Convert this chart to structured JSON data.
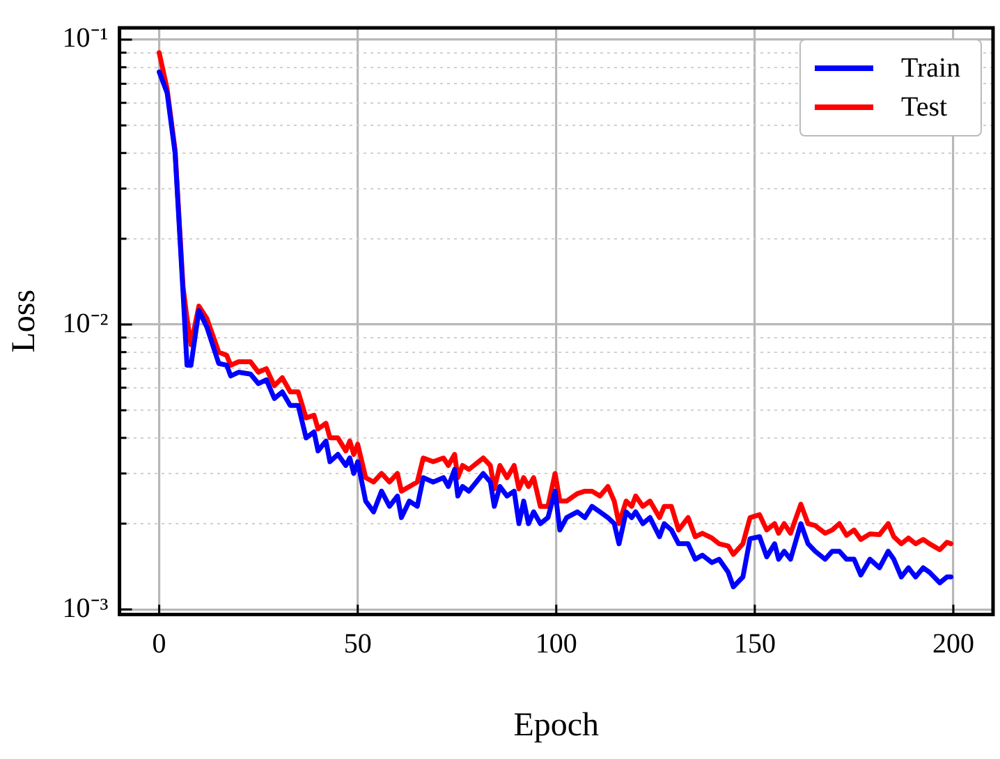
{
  "chart_data": {
    "type": "line",
    "xlabel": "Epoch",
    "ylabel": "Loss",
    "x": [
      0,
      2,
      4,
      6,
      7,
      8,
      10,
      12,
      15,
      17,
      18,
      20,
      23,
      25,
      27,
      29,
      31,
      33,
      35,
      37,
      39,
      40,
      42,
      43,
      45,
      47,
      48,
      49,
      50,
      52,
      54,
      56,
      58,
      60,
      61,
      63,
      65,
      66.5,
      69,
      71.6,
      72.8,
      74.4,
      75.2,
      76.4,
      78,
      81.6,
      83.4,
      84.4,
      85.8,
      87.6,
      89.4,
      90.6,
      91.8,
      93,
      94.3,
      96,
      97.9,
      99.7,
      100.9,
      102.6,
      105.3,
      107.2,
      109,
      111,
      113,
      114.6,
      115.8,
      117.6,
      119,
      120,
      121.8,
      123.6,
      126,
      127.2,
      129,
      130.8,
      133.2,
      135,
      136.8,
      139.2,
      141,
      143.3,
      144.6,
      147,
      148.8,
      151.2,
      153,
      155,
      156,
      157.4,
      159,
      161.6,
      163.4,
      165.2,
      167.7,
      169.5,
      171.3,
      173.1,
      175,
      176.7,
      179,
      181.4,
      183.6,
      185,
      186.9,
      188.7,
      190.5,
      192.4,
      194,
      196.6,
      198.4,
      199.4
    ],
    "series": [
      {
        "name": "Train",
        "color": "#0000ff",
        "values": [
          0.077,
          0.065,
          0.04,
          0.013,
          0.0072,
          0.0072,
          0.0112,
          0.0098,
          0.0073,
          0.0072,
          0.0066,
          0.0068,
          0.0067,
          0.0062,
          0.0064,
          0.0055,
          0.0058,
          0.0052,
          0.0052,
          0.004,
          0.0042,
          0.0036,
          0.0039,
          0.0033,
          0.0035,
          0.0032,
          0.0034,
          0.003,
          0.0033,
          0.0024,
          0.0022,
          0.0026,
          0.0023,
          0.0025,
          0.0021,
          0.0024,
          0.0023,
          0.0029,
          0.0028,
          0.0029,
          0.0027,
          0.0031,
          0.0025,
          0.0027,
          0.0026,
          0.003,
          0.0028,
          0.0023,
          0.0027,
          0.0025,
          0.0026,
          0.002,
          0.0024,
          0.002,
          0.0022,
          0.002,
          0.0021,
          0.0026,
          0.0019,
          0.0021,
          0.0022,
          0.0021,
          0.0023,
          0.0022,
          0.0021,
          0.002,
          0.0017,
          0.0022,
          0.0021,
          0.0022,
          0.002,
          0.0021,
          0.0018,
          0.002,
          0.0019,
          0.0017,
          0.0017,
          0.0015,
          0.00155,
          0.00146,
          0.0015,
          0.00135,
          0.0012,
          0.0013,
          0.00177,
          0.0018,
          0.00153,
          0.0017,
          0.0015,
          0.0016,
          0.0015,
          0.002,
          0.0017,
          0.0016,
          0.0015,
          0.0016,
          0.0016,
          0.0015,
          0.0015,
          0.00132,
          0.0015,
          0.0014,
          0.0016,
          0.0015,
          0.0013,
          0.0014,
          0.0013,
          0.0014,
          0.00135,
          0.00124,
          0.0013,
          0.0013
        ]
      },
      {
        "name": "Test",
        "color": "#ff0000",
        "values": [
          0.09,
          0.067,
          0.041,
          0.0136,
          0.0105,
          0.0085,
          0.0116,
          0.0105,
          0.008,
          0.0078,
          0.0072,
          0.0074,
          0.0074,
          0.0068,
          0.007,
          0.0061,
          0.0065,
          0.0058,
          0.0058,
          0.0047,
          0.0048,
          0.0043,
          0.0045,
          0.004,
          0.004,
          0.0036,
          0.0039,
          0.0035,
          0.0038,
          0.0029,
          0.0028,
          0.003,
          0.0028,
          0.003,
          0.0026,
          0.0027,
          0.0028,
          0.0034,
          0.0033,
          0.0034,
          0.0032,
          0.0035,
          0.0029,
          0.0032,
          0.0031,
          0.0034,
          0.0032,
          0.00265,
          0.0032,
          0.0029,
          0.0032,
          0.00265,
          0.0029,
          0.0027,
          0.0029,
          0.0023,
          0.0023,
          0.003,
          0.0024,
          0.0024,
          0.00255,
          0.0026,
          0.0026,
          0.0025,
          0.0027,
          0.0024,
          0.002,
          0.0024,
          0.0023,
          0.0025,
          0.0023,
          0.0024,
          0.0021,
          0.0023,
          0.0023,
          0.0019,
          0.0021,
          0.0018,
          0.00185,
          0.00178,
          0.0017,
          0.00167,
          0.00156,
          0.0017,
          0.0021,
          0.00215,
          0.0019,
          0.002,
          0.00185,
          0.002,
          0.00185,
          0.00234,
          0.002,
          0.00197,
          0.00185,
          0.0019,
          0.002,
          0.00182,
          0.0019,
          0.00176,
          0.00184,
          0.00183,
          0.002,
          0.0018,
          0.0017,
          0.00178,
          0.0017,
          0.00176,
          0.0017,
          0.00162,
          0.00172,
          0.0017
        ]
      }
    ],
    "xlim": [
      -10,
      210
    ],
    "xticks": [
      0,
      50,
      100,
      150,
      200
    ],
    "ylim": [
      0.00096,
      0.11
    ],
    "yticks": [
      {
        "value": 0.001,
        "label": "10⁻³"
      },
      {
        "value": 0.002,
        "label": null
      },
      {
        "value": 0.003,
        "label": null
      },
      {
        "value": 0.004,
        "label": null
      },
      {
        "value": 0.005,
        "label": null
      },
      {
        "value": 0.006,
        "label": null
      },
      {
        "value": 0.007,
        "label": null
      },
      {
        "value": 0.008,
        "label": null
      },
      {
        "value": 0.009,
        "label": null
      },
      {
        "value": 0.01,
        "label": "10⁻²"
      },
      {
        "value": 0.02,
        "label": null
      },
      {
        "value": 0.03,
        "label": null
      },
      {
        "value": 0.04,
        "label": null
      },
      {
        "value": 0.05,
        "label": null
      },
      {
        "value": 0.06,
        "label": null
      },
      {
        "value": 0.07,
        "label": null
      },
      {
        "value": 0.08,
        "label": null
      },
      {
        "value": 0.09,
        "label": null
      },
      {
        "value": 0.1,
        "label": "10⁻¹"
      }
    ],
    "log": "y",
    "grid": true,
    "legend": "top right",
    "marker": "none",
    "line_style": "solid"
  }
}
